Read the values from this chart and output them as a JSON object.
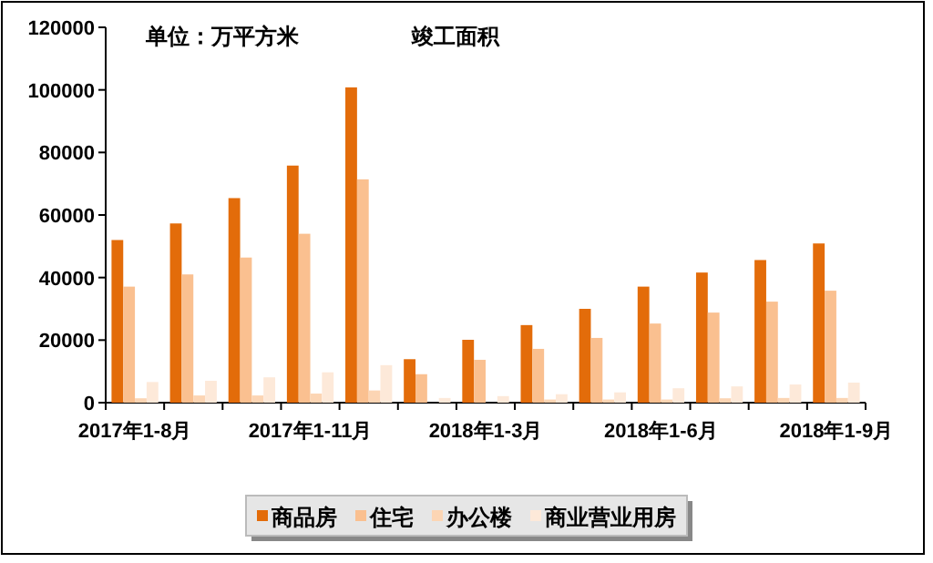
{
  "chart_data": {
    "type": "bar",
    "title": "竣工面积",
    "annotations": [
      "单位：万平方米"
    ],
    "categories": [
      "2017年1-8月",
      null,
      null,
      "2017年1-11月",
      null,
      null,
      "2018年1-3月",
      null,
      null,
      "2018年1-6月",
      null,
      null,
      "2018年1-9月"
    ],
    "series": [
      {
        "name": "商品房",
        "color": "#e36c0a",
        "values": [
          52000,
          57300,
          65400,
          75800,
          100800,
          13900,
          20100,
          24800,
          30000,
          37100,
          41600,
          45600,
          50900
        ]
      },
      {
        "name": "住宅",
        "color": "#fac090",
        "values": [
          37100,
          41000,
          46400,
          54000,
          71400,
          9100,
          13700,
          17200,
          20700,
          25300,
          28800,
          32300,
          35800
        ]
      },
      {
        "name": "办公楼",
        "color": "#fcd5b4",
        "values": [
          1400,
          2300,
          2300,
          2900,
          3900,
          null,
          null,
          1000,
          1000,
          1000,
          1400,
          1500,
          1500
        ]
      },
      {
        "name": "商业营业用房",
        "color": "#fde9d9",
        "values": [
          6600,
          7000,
          8100,
          9700,
          12000,
          1500,
          2100,
          2700,
          3300,
          4600,
          5200,
          5800,
          6400
        ]
      }
    ],
    "ylim": [
      0,
      120000
    ],
    "yticks": [
      0,
      20000,
      40000,
      60000,
      80000,
      100000,
      120000
    ],
    "legend": "bottom",
    "grid": false
  }
}
